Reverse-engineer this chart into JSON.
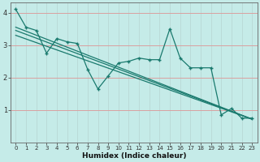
{
  "xlabel": "Humidex (Indice chaleur)",
  "background_color": "#c5ebe8",
  "grid_color_h": "#d9a0a0",
  "grid_color_v": "#b8d8d5",
  "line_color": "#1a7a6e",
  "x_data": [
    0,
    1,
    2,
    3,
    4,
    5,
    6,
    7,
    8,
    9,
    10,
    11,
    12,
    13,
    14,
    15,
    16,
    17,
    18,
    19,
    20,
    21,
    22,
    23
  ],
  "series1": [
    4.1,
    3.55,
    3.45,
    2.75,
    3.2,
    3.1,
    3.05,
    2.25,
    1.65,
    2.05,
    2.45,
    2.5,
    2.6,
    2.55,
    2.55,
    3.5,
    2.6,
    2.3,
    2.3,
    2.3,
    0.85,
    1.05,
    0.75,
    0.75
  ],
  "trend_lines": [
    {
      "x0": 0,
      "y0": 3.55,
      "x1": 23,
      "y1": 0.72
    },
    {
      "x0": 0,
      "y0": 3.45,
      "x1": 23,
      "y1": 0.72
    },
    {
      "x0": 0,
      "y0": 3.3,
      "x1": 23,
      "y1": 0.72
    }
  ],
  "ylim": [
    0,
    4.3
  ],
  "xlim": [
    -0.5,
    23.5
  ],
  "yticks": [
    1,
    2,
    3,
    4
  ],
  "xticks": [
    0,
    1,
    2,
    3,
    4,
    5,
    6,
    7,
    8,
    9,
    10,
    11,
    12,
    13,
    14,
    15,
    16,
    17,
    18,
    19,
    20,
    21,
    22,
    23
  ]
}
